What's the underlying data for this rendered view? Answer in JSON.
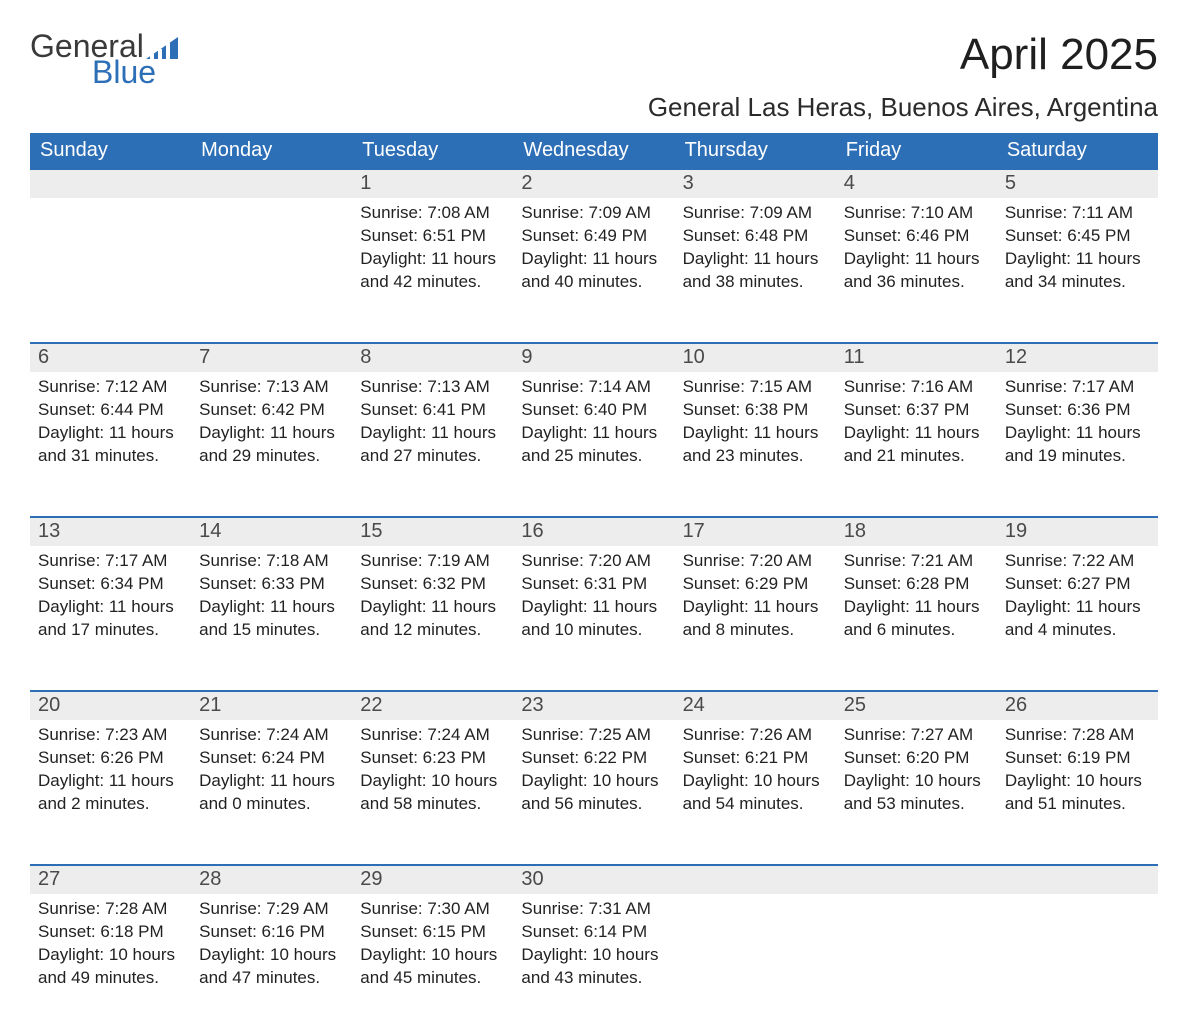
{
  "brand": {
    "name_top": "General",
    "name_bottom": "Blue",
    "logo_color": "#2d6fb7"
  },
  "title": "April 2025",
  "location": "General Las Heras, Buenos Aires, Argentina",
  "colors": {
    "header_bg": "#2d6fb7",
    "header_text": "#ffffff",
    "strip_bg": "#ededed",
    "body_text": "#222222",
    "page_bg": "#ffffff"
  },
  "days_of_week": [
    "Sunday",
    "Monday",
    "Tuesday",
    "Wednesday",
    "Thursday",
    "Friday",
    "Saturday"
  ],
  "weeks": [
    [
      {
        "n": "",
        "sunrise": "",
        "sunset": "",
        "daylight": ""
      },
      {
        "n": "",
        "sunrise": "",
        "sunset": "",
        "daylight": ""
      },
      {
        "n": "1",
        "sunrise": "Sunrise: 7:08 AM",
        "sunset": "Sunset: 6:51 PM",
        "daylight": "Daylight: 11 hours and 42 minutes."
      },
      {
        "n": "2",
        "sunrise": "Sunrise: 7:09 AM",
        "sunset": "Sunset: 6:49 PM",
        "daylight": "Daylight: 11 hours and 40 minutes."
      },
      {
        "n": "3",
        "sunrise": "Sunrise: 7:09 AM",
        "sunset": "Sunset: 6:48 PM",
        "daylight": "Daylight: 11 hours and 38 minutes."
      },
      {
        "n": "4",
        "sunrise": "Sunrise: 7:10 AM",
        "sunset": "Sunset: 6:46 PM",
        "daylight": "Daylight: 11 hours and 36 minutes."
      },
      {
        "n": "5",
        "sunrise": "Sunrise: 7:11 AM",
        "sunset": "Sunset: 6:45 PM",
        "daylight": "Daylight: 11 hours and 34 minutes."
      }
    ],
    [
      {
        "n": "6",
        "sunrise": "Sunrise: 7:12 AM",
        "sunset": "Sunset: 6:44 PM",
        "daylight": "Daylight: 11 hours and 31 minutes."
      },
      {
        "n": "7",
        "sunrise": "Sunrise: 7:13 AM",
        "sunset": "Sunset: 6:42 PM",
        "daylight": "Daylight: 11 hours and 29 minutes."
      },
      {
        "n": "8",
        "sunrise": "Sunrise: 7:13 AM",
        "sunset": "Sunset: 6:41 PM",
        "daylight": "Daylight: 11 hours and 27 minutes."
      },
      {
        "n": "9",
        "sunrise": "Sunrise: 7:14 AM",
        "sunset": "Sunset: 6:40 PM",
        "daylight": "Daylight: 11 hours and 25 minutes."
      },
      {
        "n": "10",
        "sunrise": "Sunrise: 7:15 AM",
        "sunset": "Sunset: 6:38 PM",
        "daylight": "Daylight: 11 hours and 23 minutes."
      },
      {
        "n": "11",
        "sunrise": "Sunrise: 7:16 AM",
        "sunset": "Sunset: 6:37 PM",
        "daylight": "Daylight: 11 hours and 21 minutes."
      },
      {
        "n": "12",
        "sunrise": "Sunrise: 7:17 AM",
        "sunset": "Sunset: 6:36 PM",
        "daylight": "Daylight: 11 hours and 19 minutes."
      }
    ],
    [
      {
        "n": "13",
        "sunrise": "Sunrise: 7:17 AM",
        "sunset": "Sunset: 6:34 PM",
        "daylight": "Daylight: 11 hours and 17 minutes."
      },
      {
        "n": "14",
        "sunrise": "Sunrise: 7:18 AM",
        "sunset": "Sunset: 6:33 PM",
        "daylight": "Daylight: 11 hours and 15 minutes."
      },
      {
        "n": "15",
        "sunrise": "Sunrise: 7:19 AM",
        "sunset": "Sunset: 6:32 PM",
        "daylight": "Daylight: 11 hours and 12 minutes."
      },
      {
        "n": "16",
        "sunrise": "Sunrise: 7:20 AM",
        "sunset": "Sunset: 6:31 PM",
        "daylight": "Daylight: 11 hours and 10 minutes."
      },
      {
        "n": "17",
        "sunrise": "Sunrise: 7:20 AM",
        "sunset": "Sunset: 6:29 PM",
        "daylight": "Daylight: 11 hours and 8 minutes."
      },
      {
        "n": "18",
        "sunrise": "Sunrise: 7:21 AM",
        "sunset": "Sunset: 6:28 PM",
        "daylight": "Daylight: 11 hours and 6 minutes."
      },
      {
        "n": "19",
        "sunrise": "Sunrise: 7:22 AM",
        "sunset": "Sunset: 6:27 PM",
        "daylight": "Daylight: 11 hours and 4 minutes."
      }
    ],
    [
      {
        "n": "20",
        "sunrise": "Sunrise: 7:23 AM",
        "sunset": "Sunset: 6:26 PM",
        "daylight": "Daylight: 11 hours and 2 minutes."
      },
      {
        "n": "21",
        "sunrise": "Sunrise: 7:24 AM",
        "sunset": "Sunset: 6:24 PM",
        "daylight": "Daylight: 11 hours and 0 minutes."
      },
      {
        "n": "22",
        "sunrise": "Sunrise: 7:24 AM",
        "sunset": "Sunset: 6:23 PM",
        "daylight": "Daylight: 10 hours and 58 minutes."
      },
      {
        "n": "23",
        "sunrise": "Sunrise: 7:25 AM",
        "sunset": "Sunset: 6:22 PM",
        "daylight": "Daylight: 10 hours and 56 minutes."
      },
      {
        "n": "24",
        "sunrise": "Sunrise: 7:26 AM",
        "sunset": "Sunset: 6:21 PM",
        "daylight": "Daylight: 10 hours and 54 minutes."
      },
      {
        "n": "25",
        "sunrise": "Sunrise: 7:27 AM",
        "sunset": "Sunset: 6:20 PM",
        "daylight": "Daylight: 10 hours and 53 minutes."
      },
      {
        "n": "26",
        "sunrise": "Sunrise: 7:28 AM",
        "sunset": "Sunset: 6:19 PM",
        "daylight": "Daylight: 10 hours and 51 minutes."
      }
    ],
    [
      {
        "n": "27",
        "sunrise": "Sunrise: 7:28 AM",
        "sunset": "Sunset: 6:18 PM",
        "daylight": "Daylight: 10 hours and 49 minutes."
      },
      {
        "n": "28",
        "sunrise": "Sunrise: 7:29 AM",
        "sunset": "Sunset: 6:16 PM",
        "daylight": "Daylight: 10 hours and 47 minutes."
      },
      {
        "n": "29",
        "sunrise": "Sunrise: 7:30 AM",
        "sunset": "Sunset: 6:15 PM",
        "daylight": "Daylight: 10 hours and 45 minutes."
      },
      {
        "n": "30",
        "sunrise": "Sunrise: 7:31 AM",
        "sunset": "Sunset: 6:14 PM",
        "daylight": "Daylight: 10 hours and 43 minutes."
      },
      {
        "n": "",
        "sunrise": "",
        "sunset": "",
        "daylight": ""
      },
      {
        "n": "",
        "sunrise": "",
        "sunset": "",
        "daylight": ""
      },
      {
        "n": "",
        "sunrise": "",
        "sunset": "",
        "daylight": ""
      }
    ]
  ]
}
